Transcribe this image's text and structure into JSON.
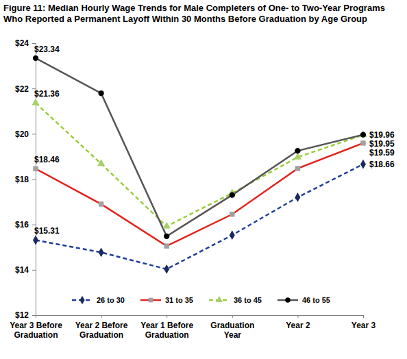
{
  "chart_data": {
    "type": "line",
    "title": "Figure 11: Median Hourly Wage Trends for Male Completers of One- to Two-Year Programs Who Reported a Permanent Layoff Within 30 Months Before Graduation by Age Group",
    "categories": [
      "Year 3 Before Graduation",
      "Year 2 Before Graduation",
      "Year 1 Before Graduation",
      "Graduation Year",
      "Year 2",
      "Year 3"
    ],
    "series": [
      {
        "name": "26 to 30",
        "color": "#1f3d99",
        "marker": "diamond",
        "line_style": "dashed",
        "values": [
          15.31,
          14.77,
          14.03,
          15.53,
          17.2,
          18.66
        ],
        "value_labels": [
          "$15.31",
          null,
          null,
          null,
          null,
          "$18.66"
        ]
      },
      {
        "name": "31 to 35",
        "color": "#e3231d",
        "marker": "square",
        "line_style": "solid",
        "values": [
          18.46,
          16.9,
          15.05,
          16.45,
          18.47,
          19.59
        ],
        "value_labels": [
          "$18.46",
          null,
          null,
          null,
          null,
          "$19.59"
        ]
      },
      {
        "name": "36 to 45",
        "color": "#9ccc3c",
        "marker": "triangle",
        "line_style": "dashed",
        "values": [
          21.36,
          18.68,
          15.92,
          17.38,
          18.97,
          19.95
        ],
        "value_labels": [
          "$21.36",
          null,
          null,
          null,
          null,
          "$19.95"
        ]
      },
      {
        "name": "46 to 55",
        "color": "#555555",
        "marker": "circle",
        "line_style": "solid",
        "values": [
          23.34,
          21.79,
          15.48,
          17.3,
          19.25,
          19.96
        ],
        "value_labels": [
          "$23.34",
          null,
          null,
          null,
          null,
          "$19.96"
        ]
      }
    ],
    "ylim": [
      12,
      24
    ],
    "yticks": [
      {
        "value": 12,
        "label": "$12"
      },
      {
        "value": 14,
        "label": "$14"
      },
      {
        "value": 16,
        "label": "$16"
      },
      {
        "value": 18,
        "label": "$18"
      },
      {
        "value": 20,
        "label": "$20"
      },
      {
        "value": 22,
        "label": "$22"
      },
      {
        "value": 24,
        "label": "$24"
      }
    ],
    "grid": false,
    "legend": "bottom",
    "data_labels": true
  }
}
